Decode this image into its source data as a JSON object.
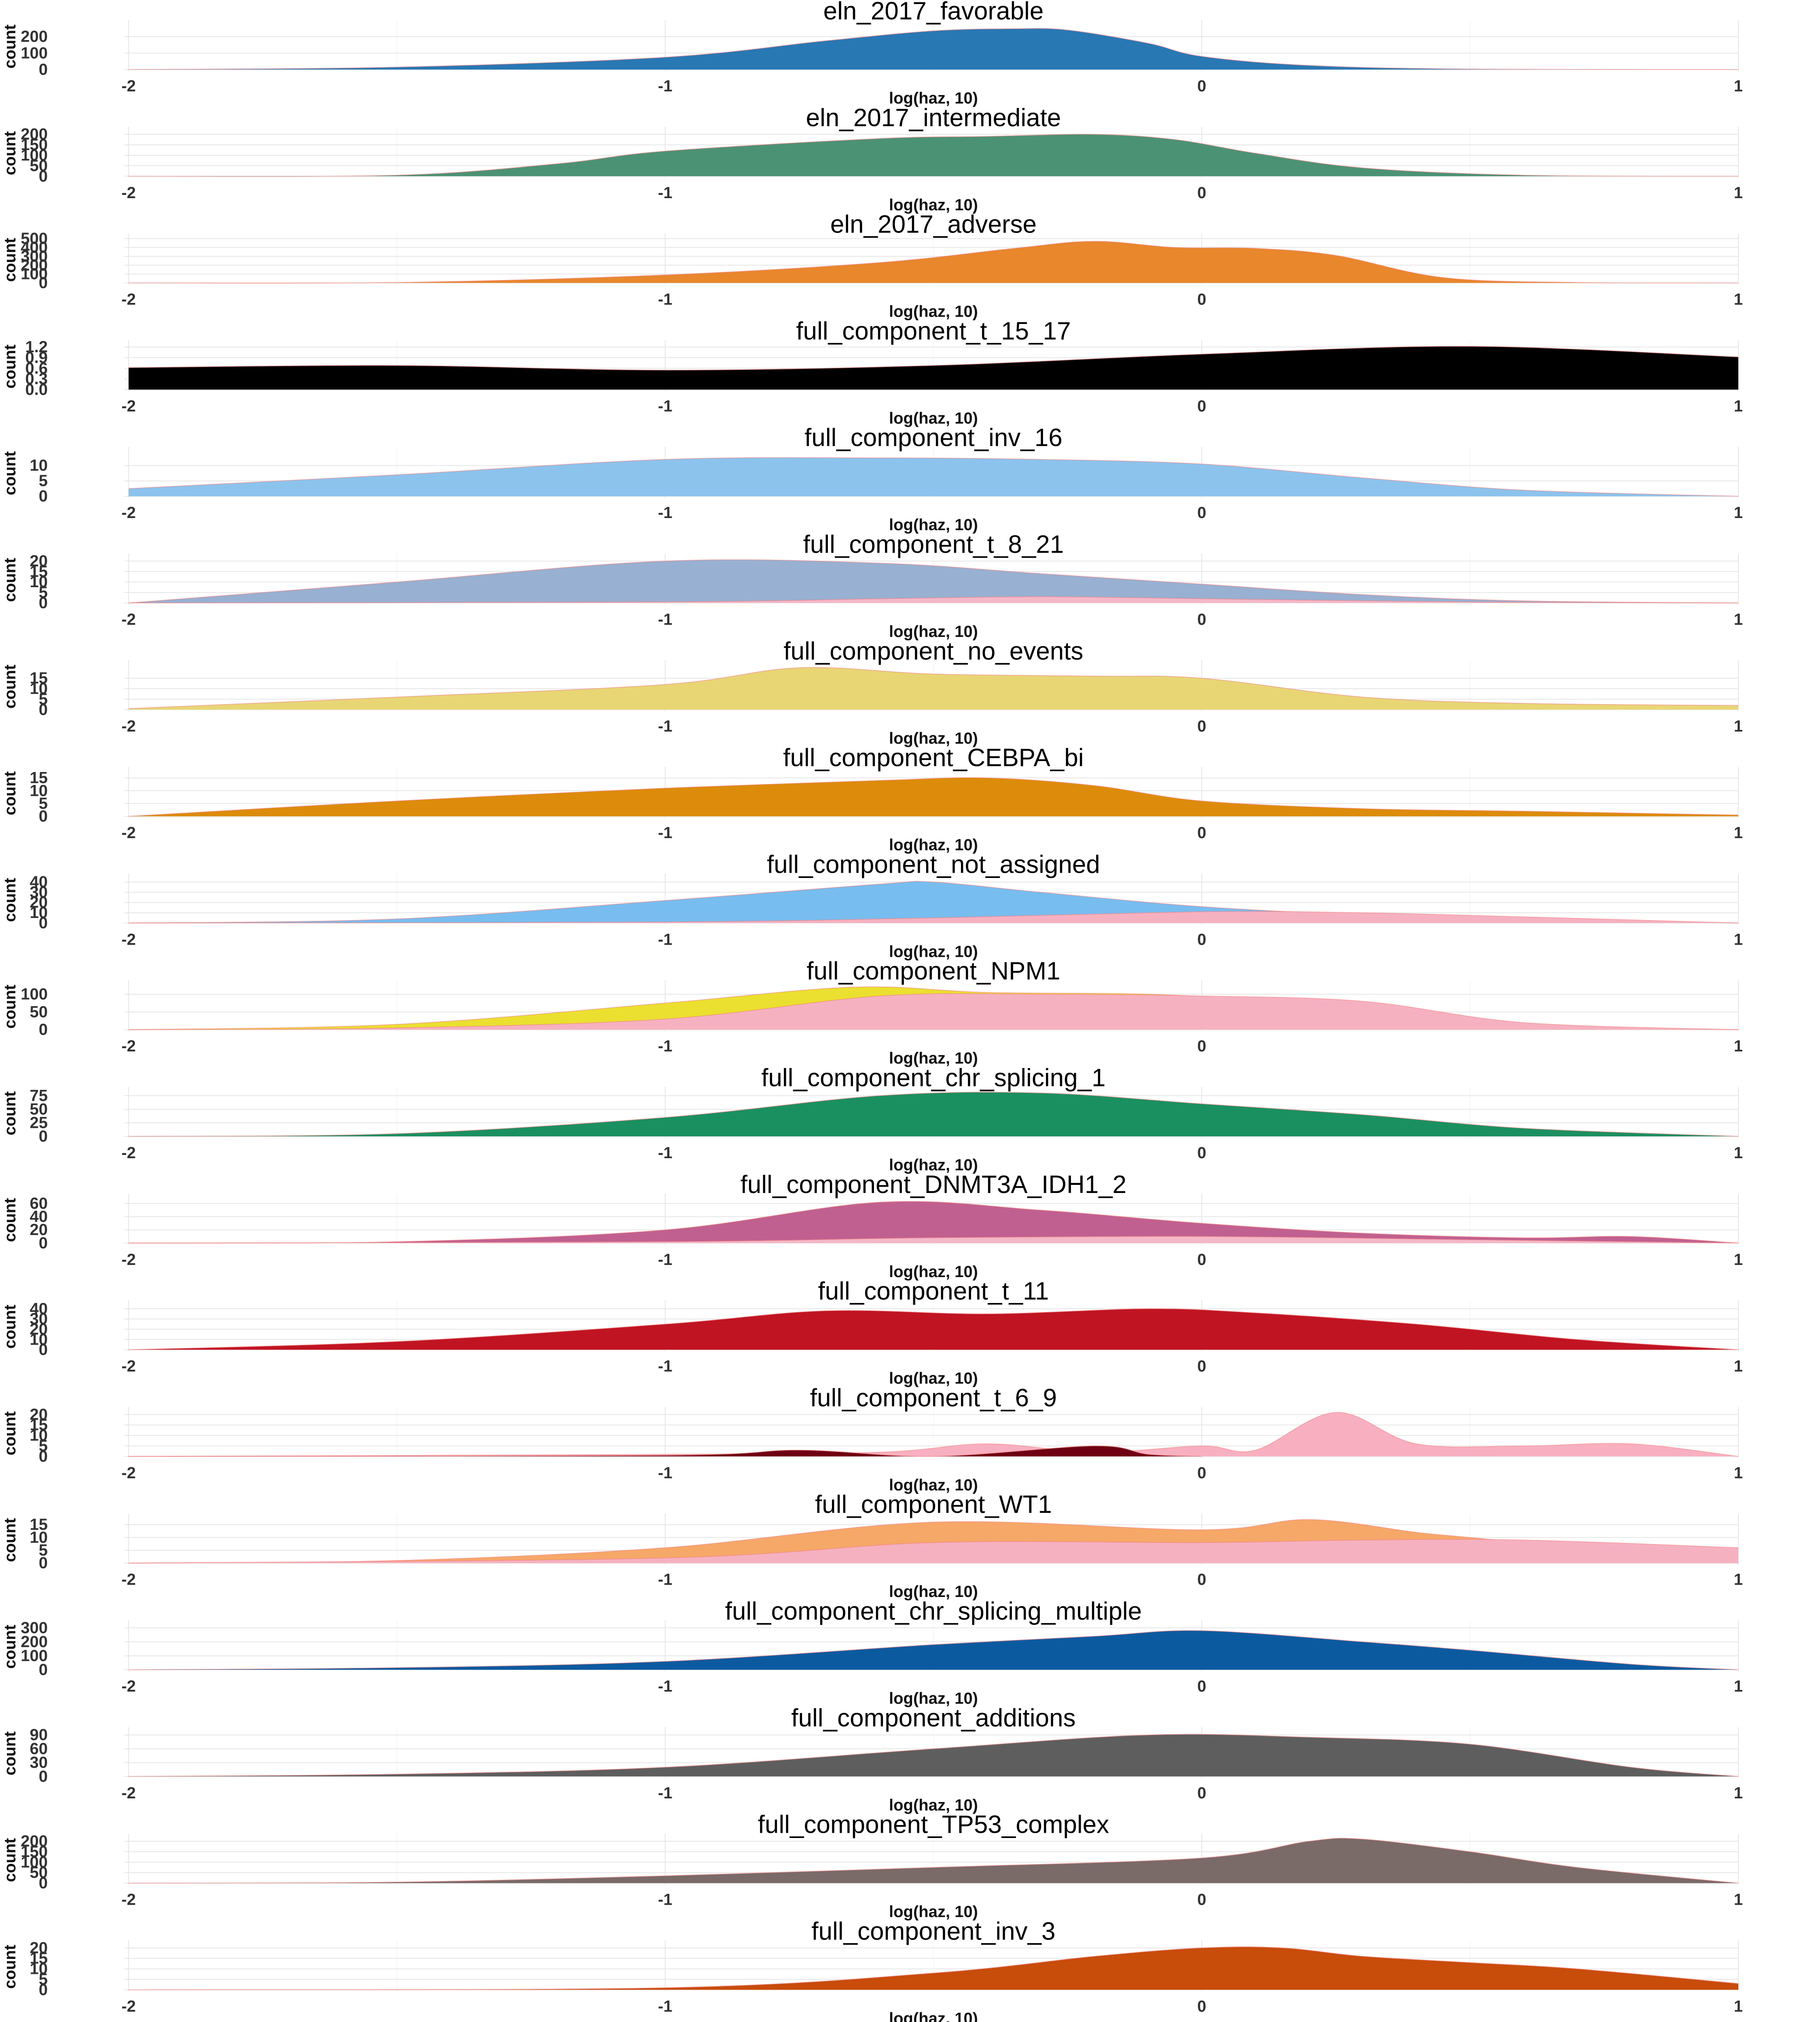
{
  "chart_data": {
    "type": "area",
    "xlabel": "log(haz, 10)",
    "ylabel": "count",
    "x_ticks": [
      "-2",
      "-1",
      "0",
      "1"
    ],
    "xlim": [
      -2,
      1
    ],
    "grid": true,
    "panels": [
      {
        "title": "eln_2017_favorable",
        "ymax": 280,
        "yticks": [
          "0",
          "100",
          "200"
        ],
        "ytick_values": [
          0,
          100,
          200
        ],
        "series": [
          {
            "color": "#2878b4",
            "x": [
              -2,
              -1.5,
              -1.0,
              -0.7,
              -0.5,
              -0.35,
              -0.25,
              -0.1,
              0.0,
              0.2,
              0.5,
              1.0
            ],
            "y": [
              0,
              15,
              75,
              175,
              235,
              248,
              240,
              160,
              80,
              25,
              3,
              0
            ]
          }
        ]
      },
      {
        "title": "eln_2017_intermediate",
        "ymax": 220,
        "yticks": [
          "0",
          "50",
          "100",
          "150",
          "200"
        ],
        "ytick_values": [
          0,
          50,
          100,
          150,
          200
        ],
        "series": [
          {
            "color": "#4b9275",
            "x": [
              -2,
              -1.5,
              -1.2,
              -1.0,
              -0.6,
              -0.4,
              -0.2,
              -0.05,
              0.1,
              0.3,
              0.6,
              1.0
            ],
            "y": [
              0,
              5,
              60,
              120,
              180,
              190,
              200,
              175,
              110,
              40,
              5,
              0
            ]
          }
        ]
      },
      {
        "title": "eln_2017_adverse",
        "ymax": 520,
        "yticks": [
          "0",
          "100",
          "200",
          "300",
          "400",
          "500"
        ],
        "ytick_values": [
          0,
          100,
          200,
          300,
          400,
          500
        ],
        "series": [
          {
            "color": "#e8872c",
            "x": [
              -2,
              -1.5,
              -1.0,
              -0.6,
              -0.35,
              -0.2,
              -0.05,
              0.1,
              0.25,
              0.45,
              0.7,
              1.0
            ],
            "y": [
              0,
              5,
              90,
              230,
              390,
              470,
              400,
              390,
              310,
              60,
              5,
              0
            ]
          }
        ]
      },
      {
        "title": "full_component_t_15_17",
        "ymax": 1.3,
        "yticks": [
          "0.0",
          "0.3",
          "0.6",
          "0.9",
          "1.2"
        ],
        "ytick_values": [
          0,
          0.3,
          0.6,
          0.9,
          1.2
        ],
        "series": [
          {
            "color": "#000000",
            "x": [
              -2,
              -1.5,
              -1.0,
              -0.5,
              0.0,
              0.5,
              1.0
            ],
            "y": [
              0.62,
              0.68,
              0.55,
              0.68,
              1.0,
              1.22,
              0.92
            ]
          }
        ]
      },
      {
        "title": "full_component_inv_16",
        "ymax": 15,
        "yticks": [
          "0",
          "5",
          "10"
        ],
        "ytick_values": [
          0,
          5,
          10
        ],
        "series": [
          {
            "color": "#8cc3ed",
            "x": [
              -2,
              -1.5,
              -1.0,
              -0.6,
              -0.3,
              0.0,
              0.3,
              0.6,
              1.0
            ],
            "y": [
              2.5,
              7,
              12,
              12.5,
              12,
              10.5,
              6,
              2,
              0
            ]
          }
        ]
      },
      {
        "title": "full_component_t_8_21",
        "ymax": 22,
        "yticks": [
          "0",
          "5",
          "10",
          "15",
          "20"
        ],
        "ytick_values": [
          0,
          5,
          10,
          15,
          20
        ],
        "series": [
          {
            "color": "#98b0d2",
            "x": [
              -2,
              -1.5,
              -1.0,
              -0.6,
              -0.3,
              0.0,
              0.3,
              0.6,
              1.0
            ],
            "y": [
              0,
              10,
              20,
              19,
              14,
              9,
              4,
              1,
              0
            ]
          },
          {
            "color": "#f4b8c8",
            "x": [
              -2,
              -1.0,
              -0.6,
              -0.3,
              0.0,
              0.3,
              0.6,
              1.0
            ],
            "y": [
              0,
              0.5,
              2,
              3,
              2,
              1,
              0.3,
              0
            ]
          }
        ]
      },
      {
        "title": "full_component_no_events",
        "ymax": 22,
        "yticks": [
          "0",
          "5",
          "10",
          "15"
        ],
        "ytick_values": [
          0,
          5,
          10,
          15
        ],
        "series": [
          {
            "color": "#e8d675",
            "x": [
              -2,
              -1.5,
              -1.0,
              -0.75,
              -0.5,
              -0.2,
              0.0,
              0.3,
              0.6,
              1.0
            ],
            "y": [
              0.5,
              6,
              12,
              20,
              17,
              16,
              15,
              6,
              3,
              2
            ]
          }
        ]
      },
      {
        "title": "full_component_CEBPA_bi",
        "ymax": 18,
        "yticks": [
          "0",
          "5",
          "10",
          "15"
        ],
        "ytick_values": [
          0,
          5,
          10,
          15
        ],
        "series": [
          {
            "color": "#dc8c0a",
            "x": [
              -2,
              -1.5,
              -1.0,
              -0.6,
              -0.4,
              -0.2,
              0.0,
              0.3,
              0.6,
              1.0
            ],
            "y": [
              0,
              6,
              11,
              14,
              15,
              12,
              6,
              3,
              2,
              0.5
            ]
          }
        ]
      },
      {
        "title": "full_component_not_assigned",
        "ymax": 45,
        "yticks": [
          "0",
          "10",
          "20",
          "30",
          "40"
        ],
        "ytick_values": [
          0,
          10,
          20,
          30,
          40
        ],
        "series": [
          {
            "color": "#78bdf0",
            "x": [
              -2,
              -1.5,
              -1.0,
              -0.6,
              -0.5,
              -0.3,
              0.0,
              0.3,
              0.6,
              1.0
            ],
            "y": [
              0,
              4,
              22,
              38,
              40,
              30,
              16,
              8,
              4,
              0
            ]
          },
          {
            "color": "#f6b1c1",
            "x": [
              -2,
              -1.0,
              -0.5,
              0.0,
              0.3,
              0.6,
              1.0
            ],
            "y": [
              0,
              1,
              5,
              11,
              10,
              6,
              0
            ]
          }
        ]
      },
      {
        "title": "full_component_NPM1",
        "ymax": 130,
        "yticks": [
          "0",
          "50",
          "100"
        ],
        "ytick_values": [
          0,
          50,
          100
        ],
        "series": [
          {
            "color": "#ebe030",
            "x": [
              -2,
              -1.5,
              -1.0,
              -0.65,
              -0.4,
              -0.1,
              0.1,
              0.3,
              0.6,
              1.0
            ],
            "y": [
              0,
              15,
              75,
              120,
              105,
              100,
              80,
              30,
              5,
              0
            ]
          },
          {
            "color": "#f6b1c1",
            "x": [
              -2,
              -1.5,
              -1.0,
              -0.6,
              -0.3,
              0.0,
              0.3,
              0.6,
              1.0
            ],
            "y": [
              0,
              5,
              30,
              95,
              100,
              95,
              80,
              20,
              0
            ]
          }
        ]
      },
      {
        "title": "full_component_chr_splicing_1",
        "ymax": 85,
        "yticks": [
          "0",
          "25",
          "50",
          "75"
        ],
        "ytick_values": [
          0,
          25,
          50,
          75
        ],
        "series": [
          {
            "color": "#1a9060",
            "x": [
              -2,
              -1.5,
              -1.0,
              -0.6,
              -0.3,
              0.0,
              0.3,
              0.6,
              1.0
            ],
            "y": [
              0,
              5,
              35,
              75,
              80,
              60,
              40,
              15,
              0
            ]
          }
        ]
      },
      {
        "title": "full_component_DNMT3A_IDH1_2",
        "ymax": 70,
        "yticks": [
          "0",
          "20",
          "40",
          "60"
        ],
        "ytick_values": [
          0,
          20,
          40,
          60
        ],
        "series": [
          {
            "color": "#c06090",
            "x": [
              -2,
              -1.5,
              -1.0,
              -0.6,
              -0.3,
              0.0,
              0.3,
              0.6,
              0.8,
              1.0
            ],
            "y": [
              0,
              2,
              20,
              62,
              50,
              30,
              15,
              8,
              10,
              0
            ]
          },
          {
            "color": "#f4b8c8",
            "x": [
              -2,
              -1.0,
              -0.5,
              0.0,
              0.5,
              1.0
            ],
            "y": [
              0,
              2,
              8,
              10,
              5,
              0
            ]
          }
        ]
      },
      {
        "title": "full_component_t_11",
        "ymax": 45,
        "yticks": [
          "0",
          "10",
          "20",
          "30",
          "40"
        ],
        "ytick_values": [
          0,
          10,
          20,
          30,
          40
        ],
        "series": [
          {
            "color": "#c01422",
            "x": [
              -2,
              -1.5,
              -1.0,
              -0.7,
              -0.4,
              -0.1,
              0.1,
              0.4,
              0.7,
              1.0
            ],
            "y": [
              0,
              8,
              25,
              38,
              35,
              40,
              36,
              25,
              10,
              0
            ]
          }
        ]
      },
      {
        "title": "full_component_t_6_9",
        "ymax": 22,
        "yticks": [
          "0",
          "5",
          "10",
          "15",
          "20"
        ],
        "ytick_values": [
          0,
          5,
          10,
          15,
          20
        ],
        "series": [
          {
            "color": "#f8b0c0",
            "x": [
              -2,
              -1.0,
              -0.6,
              -0.4,
              -0.2,
              0.0,
              0.1,
              0.25,
              0.4,
              0.6,
              0.8,
              1.0
            ],
            "y": [
              0,
              1,
              2,
              6,
              2,
              5,
              3,
              21,
              6,
              5,
              6,
              0
            ]
          },
          {
            "color": "#6e0012",
            "x": [
              -2,
              -1.0,
              -0.75,
              -0.5,
              -0.2,
              -0.1,
              0.0
            ],
            "y": [
              0,
              0.5,
              3,
              0,
              5,
              1,
              0
            ]
          }
        ]
      },
      {
        "title": "full_component_WT1",
        "ymax": 18,
        "yticks": [
          "0",
          "5",
          "10",
          "15"
        ],
        "ytick_values": [
          0,
          5,
          10,
          15
        ],
        "series": [
          {
            "color": "#f6a868",
            "x": [
              -2,
              -1.5,
              -1.0,
              -0.5,
              0.0,
              0.2,
              0.4,
              0.5,
              0.7,
              1.0
            ],
            "y": [
              0,
              1,
              6,
              16,
              13,
              17,
              12,
              10,
              6,
              0
            ]
          },
          {
            "color": "#f6b1c1",
            "x": [
              -2,
              -1.0,
              -0.5,
              0.0,
              0.3,
              0.6,
              1.0
            ],
            "y": [
              0,
              2,
              8,
              8,
              9,
              9,
              6
            ]
          }
        ]
      },
      {
        "title": "full_component_chr_splicing_multiple",
        "ymax": 330,
        "yticks": [
          "0",
          "100",
          "200",
          "300"
        ],
        "ytick_values": [
          0,
          100,
          200,
          300
        ],
        "series": [
          {
            "color": "#0b5aa0",
            "x": [
              -2,
              -1.5,
              -1.0,
              -0.5,
              -0.2,
              0.0,
              0.3,
              0.5,
              0.8,
              1.0
            ],
            "y": [
              0,
              15,
              60,
              180,
              240,
              280,
              200,
              140,
              40,
              0
            ]
          }
        ]
      },
      {
        "title": "full_component_additions",
        "ymax": 100,
        "yticks": [
          "0",
          "30",
          "60",
          "90"
        ],
        "ytick_values": [
          0,
          30,
          60,
          90
        ],
        "series": [
          {
            "color": "#5e5e5e",
            "x": [
              -2,
              -1.5,
              -1.0,
              -0.5,
              -0.1,
              0.2,
              0.5,
              0.8,
              1.0
            ],
            "y": [
              0,
              5,
              20,
              60,
              90,
              85,
              70,
              20,
              0
            ]
          }
        ]
      },
      {
        "title": "full_component_TP53_complex",
        "ymax": 220,
        "yticks": [
          "0",
          "50",
          "100",
          "150",
          "200"
        ],
        "ytick_values": [
          0,
          50,
          100,
          150,
          200
        ],
        "series": [
          {
            "color": "#7a6a68",
            "x": [
              -2,
              -1.5,
              -1.0,
              -0.5,
              0.0,
              0.2,
              0.3,
              0.5,
              0.7,
              1.0
            ],
            "y": [
              0,
              5,
              35,
              75,
              120,
              200,
              210,
              150,
              75,
              0
            ]
          }
        ]
      },
      {
        "title": "full_component_inv_3",
        "ymax": 22,
        "yticks": [
          "0",
          "5",
          "10",
          "15",
          "20"
        ],
        "ytick_values": [
          0,
          5,
          10,
          15,
          20
        ],
        "series": [
          {
            "color": "#c84c0a",
            "x": [
              -2,
              -1.0,
              -0.5,
              -0.2,
              0.0,
              0.15,
              0.3,
              0.5,
              0.7,
              1.0
            ],
            "y": [
              0,
              1,
              8,
              16,
              20,
              20,
              16,
              13,
              10,
              3
            ]
          }
        ]
      }
    ]
  }
}
